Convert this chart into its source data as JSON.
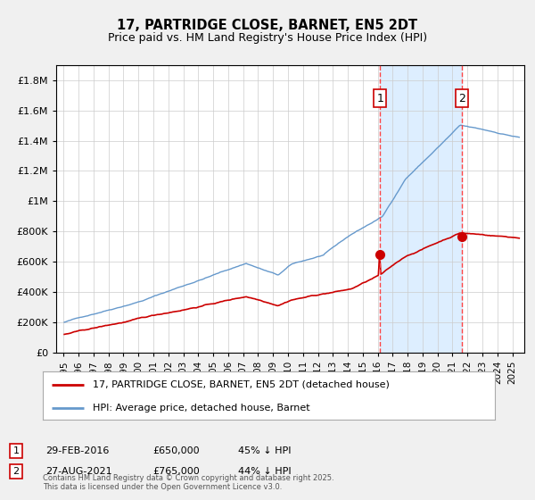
{
  "title1": "17, PARTRIDGE CLOSE, BARNET, EN5 2DT",
  "title2": "Price paid vs. HM Land Registry's House Price Index (HPI)",
  "legend_red": "17, PARTRIDGE CLOSE, BARNET, EN5 2DT (detached house)",
  "legend_blue": "HPI: Average price, detached house, Barnet",
  "sale1_label": "1",
  "sale1_date": "29-FEB-2016",
  "sale1_price": "£650,000",
  "sale1_note": "45% ↓ HPI",
  "sale2_label": "2",
  "sale2_date": "27-AUG-2021",
  "sale2_price": "£765,000",
  "sale2_note": "44% ↓ HPI",
  "footer": "Contains HM Land Registry data © Crown copyright and database right 2025.\nThis data is licensed under the Open Government Licence v3.0.",
  "red_color": "#cc0000",
  "blue_color": "#6699cc",
  "shade_color": "#ddeeff",
  "dashed_color": "#ff4444",
  "marker_color": "#cc0000",
  "grid_color": "#cccccc",
  "bg_color": "#f0f0f0",
  "plot_bg": "#ffffff",
  "ylim": [
    0,
    1900000
  ],
  "yticks": [
    0,
    200000,
    400000,
    600000,
    800000,
    1000000,
    1200000,
    1400000,
    1600000,
    1800000
  ],
  "xlabel_years": [
    1995,
    1996,
    1997,
    1998,
    1999,
    2000,
    2001,
    2002,
    2003,
    2004,
    2005,
    2006,
    2007,
    2008,
    2009,
    2010,
    2011,
    2012,
    2013,
    2014,
    2015,
    2016,
    2017,
    2018,
    2019,
    2020,
    2021,
    2022,
    2023,
    2024,
    2025
  ],
  "sale1_x": 2016.16,
  "sale1_y": 650000,
  "sale2_x": 2021.65,
  "sale2_y": 765000,
  "vline1_x": 2016.16,
  "vline2_x": 2021.65,
  "xmin": 1994.5,
  "xmax": 2025.8
}
